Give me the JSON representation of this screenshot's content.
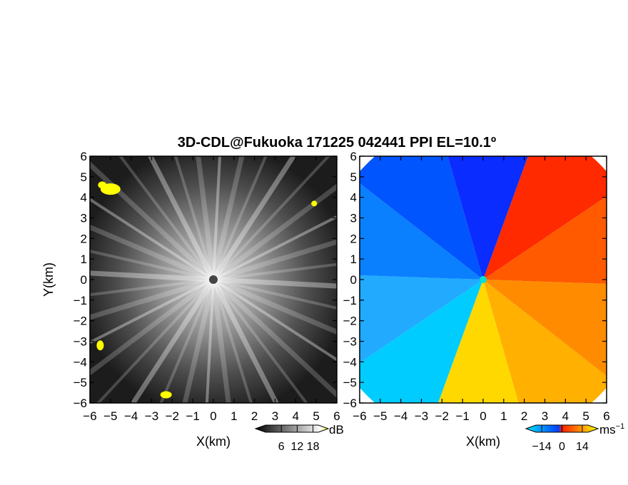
{
  "figure": {
    "title": "3D-CDL@Fukuoka 171225 042441 PPI EL=10.1º"
  },
  "chart_data": [
    {
      "type": "heatmap",
      "panel": "left",
      "xlabel": "X(km)",
      "ylabel": "Y(km)",
      "xlim": [
        -6,
        6
      ],
      "ylim": [
        -6,
        6
      ],
      "xticks": [
        "−6",
        "−5",
        "−4",
        "−3",
        "−2",
        "−1",
        "0",
        "1",
        "2",
        "3",
        "4",
        "5",
        "6"
      ],
      "yticks": [
        "−6",
        "−5",
        "−4",
        "−3",
        "−2",
        "−1",
        "0",
        "1",
        "2",
        "3",
        "4",
        "5",
        "6"
      ],
      "colorbar": {
        "unit": "dB",
        "ticks": [
          "6",
          "12",
          "18"
        ],
        "tick_values": [
          6,
          12,
          18
        ],
        "range": [
          0,
          20
        ],
        "colors": [
          "#000000",
          "#ffffff",
          "#ffff00"
        ]
      },
      "field": "grayscale signal intensity with radial spokes from origin; yellow patches near (-5,4.4), (4.9,3.7), (-2.3,-5.6), (-5.5,-3.2)"
    },
    {
      "type": "heatmap",
      "panel": "right",
      "xlabel": "X(km)",
      "xlim": [
        -6,
        6
      ],
      "ylim": [
        -6,
        6
      ],
      "xticks": [
        "−6",
        "−5",
        "−4",
        "−3",
        "−2",
        "−1",
        "0",
        "1",
        "2",
        "3",
        "4",
        "5",
        "6"
      ],
      "yticks": [
        "−6",
        "−5",
        "−4",
        "−3",
        "−2",
        "−1",
        "0",
        "1",
        "2",
        "3",
        "4",
        "5",
        "6"
      ],
      "colorbar": {
        "unit": "ms",
        "unit_superscript": "−1",
        "ticks": [
          "−14",
          "0",
          "14"
        ],
        "tick_values": [
          -14,
          0,
          14
        ],
        "range": [
          -18,
          18
        ],
        "colors": [
          "#00e5ff",
          "#0040ff",
          "#ff2000",
          "#ffff00"
        ]
      },
      "field": "radial velocity: negative (blue/cyan) on the northwest half, positive (red/orange/yellow) on the southeast half"
    }
  ]
}
